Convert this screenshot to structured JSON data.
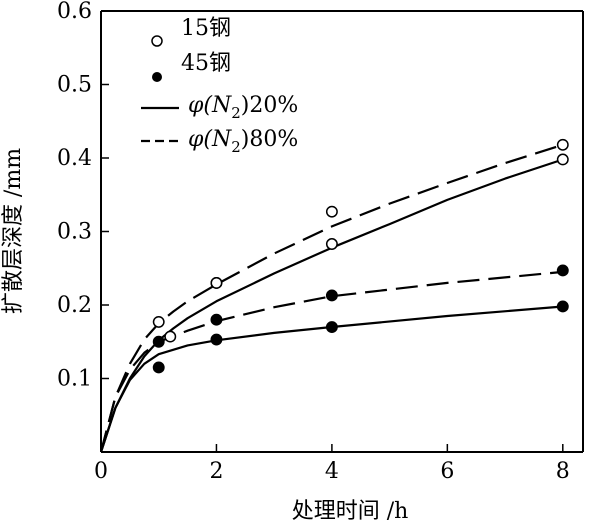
{
  "chart_data": {
    "type": "line",
    "xlabel": "处理时间 /h",
    "ylabel": "扩散层深度 /mm",
    "xlim": [
      0,
      8.35
    ],
    "ylim": [
      0,
      0.6
    ],
    "xticks": [
      0,
      2,
      4,
      6,
      8
    ],
    "yticks": [
      0.1,
      0.2,
      0.3,
      0.4,
      0.5,
      0.6
    ],
    "xtick_labels": [
      "0",
      "2",
      "4",
      "6",
      "8"
    ],
    "ytick_labels": [
      "0.1",
      "0.2",
      "0.3",
      "0.4",
      "0.5",
      "0.6"
    ],
    "grid": false,
    "legend": {
      "position": "top-left",
      "marker_entries": [
        {
          "label": "15钢",
          "marker": "open-circle"
        },
        {
          "label": "45钢",
          "marker": "filled-circle"
        }
      ],
      "line_entries": [
        {
          "prefix": "φ(N",
          "sub": "2",
          "suffix": ")20%",
          "style": "solid"
        },
        {
          "prefix": "φ(N",
          "sub": "2",
          "suffix": ")80%",
          "style": "dashed"
        }
      ]
    },
    "series": [
      {
        "name": "15钢 φ(N2)80%",
        "style": "dashed",
        "marker": "open-circle",
        "points": [
          [
            1,
            0.177
          ],
          [
            2,
            0.23
          ],
          [
            4,
            0.327
          ],
          [
            8,
            0.418
          ]
        ],
        "curve": [
          [
            0,
            0
          ],
          [
            0.25,
            0.075
          ],
          [
            0.5,
            0.12
          ],
          [
            0.75,
            0.153
          ],
          [
            1,
            0.175
          ],
          [
            1.25,
            0.191
          ],
          [
            1.5,
            0.205
          ],
          [
            2,
            0.228
          ],
          [
            3,
            0.27
          ],
          [
            4,
            0.307
          ],
          [
            5,
            0.338
          ],
          [
            6,
            0.366
          ],
          [
            7,
            0.393
          ],
          [
            8,
            0.418
          ]
        ]
      },
      {
        "name": "15钢 φ(N2)20%",
        "style": "solid",
        "marker": "open-circle",
        "points": [
          [
            1.2,
            0.157
          ],
          [
            2,
            0.23
          ],
          [
            4,
            0.283
          ],
          [
            8,
            0.398
          ]
        ],
        "curve": [
          [
            0,
            0
          ],
          [
            0.25,
            0.06
          ],
          [
            0.5,
            0.1
          ],
          [
            0.75,
            0.13
          ],
          [
            1,
            0.152
          ],
          [
            1.25,
            0.168
          ],
          [
            1.5,
            0.182
          ],
          [
            2,
            0.205
          ],
          [
            3,
            0.243
          ],
          [
            4,
            0.278
          ],
          [
            5,
            0.31
          ],
          [
            6,
            0.343
          ],
          [
            7,
            0.372
          ],
          [
            8,
            0.398
          ]
        ]
      },
      {
        "name": "45钢 φ(N2)80%",
        "style": "dashed",
        "marker": "filled-circle",
        "points": [
          [
            1,
            0.15
          ],
          [
            2,
            0.18
          ],
          [
            4,
            0.213
          ],
          [
            8,
            0.247
          ]
        ],
        "curve": [
          [
            0,
            0
          ],
          [
            0.25,
            0.075
          ],
          [
            0.5,
            0.112
          ],
          [
            0.75,
            0.135
          ],
          [
            1,
            0.15
          ],
          [
            1.5,
            0.165
          ],
          [
            2,
            0.178
          ],
          [
            3,
            0.197
          ],
          [
            4,
            0.212
          ],
          [
            6,
            0.23
          ],
          [
            8,
            0.245
          ]
        ]
      },
      {
        "name": "45钢 φ(N2)20%",
        "style": "solid",
        "marker": "filled-circle",
        "points": [
          [
            1,
            0.115
          ],
          [
            2,
            0.153
          ],
          [
            4,
            0.17
          ],
          [
            8,
            0.198
          ]
        ],
        "curve": [
          [
            0,
            0
          ],
          [
            0.25,
            0.06
          ],
          [
            0.5,
            0.098
          ],
          [
            0.75,
            0.12
          ],
          [
            1,
            0.133
          ],
          [
            1.5,
            0.145
          ],
          [
            2,
            0.152
          ],
          [
            3,
            0.162
          ],
          [
            4,
            0.17
          ],
          [
            6,
            0.185
          ],
          [
            8,
            0.198
          ]
        ]
      }
    ]
  }
}
